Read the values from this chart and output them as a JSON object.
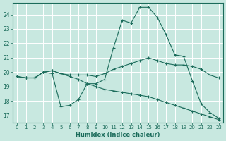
{
  "xlabel": "Humidex (Indice chaleur)",
  "bg_color": "#c8e8e0",
  "line_color": "#1a6b5a",
  "grid_color": "#ffffff",
  "xlim": [
    -0.5,
    23.5
  ],
  "ylim": [
    16.5,
    24.8
  ],
  "yticks": [
    17,
    18,
    19,
    20,
    21,
    22,
    23,
    24
  ],
  "xticks": [
    0,
    1,
    2,
    3,
    4,
    5,
    6,
    7,
    8,
    9,
    10,
    11,
    12,
    13,
    14,
    15,
    16,
    17,
    18,
    19,
    20,
    21,
    22,
    23
  ],
  "line1_x": [
    0,
    1,
    2,
    3,
    4,
    5,
    6,
    7,
    8,
    9,
    10,
    11,
    12,
    13,
    14,
    15,
    16,
    17,
    18,
    19,
    20,
    21,
    22,
    23
  ],
  "line1_y": [
    19.7,
    19.6,
    19.6,
    20.0,
    19.9,
    17.6,
    17.7,
    18.1,
    19.2,
    19.2,
    19.5,
    21.7,
    23.6,
    23.4,
    24.5,
    24.5,
    23.8,
    22.6,
    21.2,
    21.1,
    19.4,
    17.8,
    17.2,
    16.8
  ],
  "line2_x": [
    0,
    1,
    2,
    3,
    4,
    5,
    6,
    7,
    8,
    9,
    10,
    11,
    12,
    13,
    14,
    15,
    16,
    17,
    18,
    19,
    20,
    21,
    22,
    23
  ],
  "line2_y": [
    19.7,
    19.6,
    19.6,
    20.0,
    20.1,
    19.9,
    19.8,
    19.8,
    19.8,
    19.7,
    19.9,
    20.2,
    20.4,
    20.6,
    20.8,
    21.0,
    20.8,
    20.6,
    20.5,
    20.5,
    20.4,
    20.2,
    19.8,
    19.6
  ],
  "line3_x": [
    0,
    1,
    2,
    3,
    4,
    5,
    6,
    7,
    8,
    9,
    10,
    11,
    12,
    13,
    14,
    15,
    16,
    17,
    18,
    19,
    20,
    21,
    22,
    23
  ],
  "line3_y": [
    19.7,
    19.6,
    19.6,
    20.0,
    20.1,
    19.9,
    19.7,
    19.5,
    19.2,
    19.0,
    18.8,
    18.7,
    18.6,
    18.5,
    18.4,
    18.3,
    18.1,
    17.9,
    17.7,
    17.5,
    17.3,
    17.1,
    16.9,
    16.7
  ]
}
